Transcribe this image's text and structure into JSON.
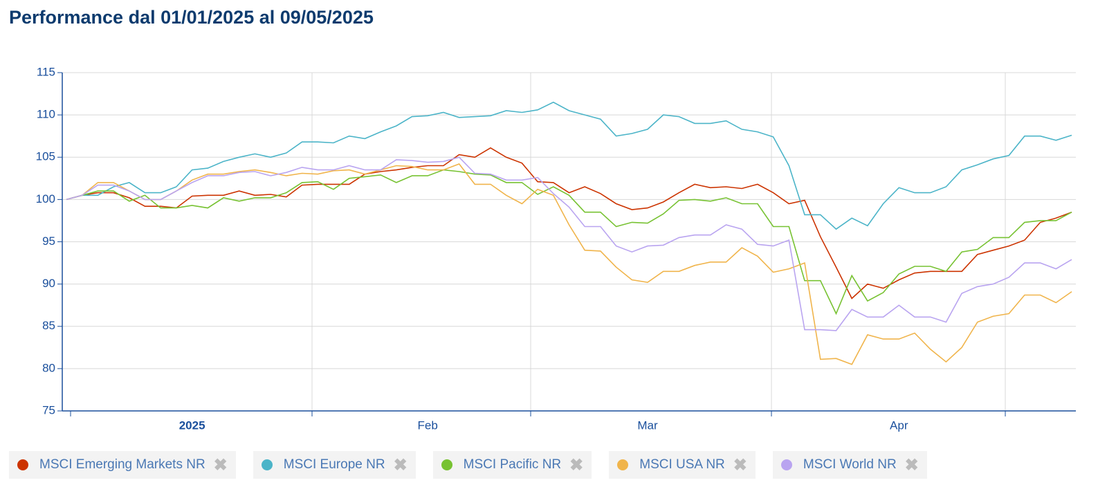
{
  "chart_data": {
    "type": "line",
    "title": "Performance dal 01/01/2025 al 09/05/2025",
    "categories": [
      null,
      null,
      null,
      null,
      null,
      null,
      null,
      null,
      "2025",
      null,
      null,
      null,
      null,
      null,
      null,
      null,
      null,
      null,
      null,
      null,
      null,
      null,
      null,
      "Feb",
      null,
      null,
      null,
      null,
      null,
      null,
      null,
      null,
      null,
      null,
      null,
      null,
      null,
      "Mar",
      null,
      null,
      null,
      null,
      null,
      null,
      null,
      null,
      null,
      null,
      null,
      null,
      null,
      null,
      null,
      "Apr",
      null,
      null,
      null,
      null,
      null,
      null,
      null,
      null,
      null,
      null,
      null
    ],
    "ylim": [
      75,
      115
    ],
    "yticks": [
      75,
      80,
      85,
      90,
      95,
      100,
      105,
      110,
      115
    ],
    "grid": true,
    "series": [
      {
        "name": "MSCI Emerging Markets NR",
        "color": "#cc3300",
        "values": [
          100,
          100.5,
          100.8,
          100.8,
          100.2,
          99.2,
          99.2,
          99,
          100.4,
          100.5,
          100.5,
          101,
          100.5,
          100.6,
          100.3,
          101.7,
          101.8,
          101.8,
          101.8,
          103,
          103.3,
          103.5,
          103.8,
          104,
          104,
          105.3,
          105,
          106.1,
          105,
          104.3,
          102.1,
          102,
          100.8,
          101.5,
          100.7,
          99.5,
          98.8,
          99,
          99.7,
          100.8,
          101.8,
          101.4,
          101.5,
          101.3,
          101.8,
          100.8,
          99.5,
          99.9,
          95.6,
          92,
          88.3,
          90,
          89.5,
          90.5,
          91.3,
          91.5,
          91.5,
          91.5,
          93.5,
          94,
          94.5,
          95.2,
          97.3,
          97.8,
          98.5
        ]
      },
      {
        "name": "MSCI Europe NR",
        "color": "#4bb4c8",
        "values": [
          100,
          100.5,
          100.5,
          101.5,
          102,
          100.8,
          100.8,
          101.5,
          103.5,
          103.7,
          104.5,
          105,
          105.4,
          105,
          105.5,
          106.8,
          106.8,
          106.7,
          107.5,
          107.2,
          108,
          108.7,
          109.8,
          109.9,
          110.3,
          109.7,
          109.8,
          109.9,
          110.5,
          110.3,
          110.6,
          111.5,
          110.5,
          110,
          109.5,
          107.5,
          107.8,
          108.3,
          110,
          109.8,
          109,
          109,
          109.3,
          108.3,
          108,
          107.4,
          104,
          98.2,
          98.2,
          96.5,
          97.8,
          96.9,
          99.5,
          101.4,
          100.8,
          100.8,
          101.5,
          103.5,
          104.1,
          104.8,
          105.2,
          107.5,
          107.5,
          107,
          107.6
        ]
      },
      {
        "name": "MSCI Pacific NR",
        "color": "#77c232",
        "values": [
          100,
          100.5,
          101,
          101,
          99.8,
          100.5,
          99,
          99,
          99.3,
          99,
          100.2,
          99.8,
          100.2,
          100.2,
          100.8,
          102,
          102.1,
          101.2,
          102.5,
          102.7,
          102.9,
          102,
          102.8,
          102.8,
          103.5,
          103.3,
          103,
          102.9,
          102,
          102,
          100.6,
          101.5,
          100.5,
          98.5,
          98.5,
          96.8,
          97.3,
          97.2,
          98.3,
          99.9,
          100,
          99.8,
          100.2,
          99.5,
          99.5,
          96.8,
          96.8,
          90.4,
          90.4,
          86.5,
          91,
          88,
          89,
          91.2,
          92.1,
          92.1,
          91.5,
          93.8,
          94.1,
          95.5,
          95.5,
          97.3,
          97.5,
          97.5,
          98.5
        ]
      },
      {
        "name": "MSCI USA NR",
        "color": "#f0b44b",
        "values": [
          100,
          100.5,
          102,
          102,
          101,
          100,
          100,
          101,
          102.3,
          103,
          103,
          103.3,
          103.5,
          103.2,
          102.8,
          103.1,
          103,
          103.4,
          103.5,
          103,
          103.5,
          104,
          103.9,
          103.5,
          103.5,
          104.2,
          101.8,
          101.8,
          100.5,
          99.5,
          101.2,
          100.5,
          97,
          94,
          93.9,
          92,
          90.5,
          90.2,
          91.5,
          91.5,
          92.2,
          92.6,
          92.6,
          94.3,
          93.3,
          91.4,
          91.8,
          92.5,
          81.1,
          81.2,
          80.5,
          84,
          83.5,
          83.5,
          84.2,
          82.3,
          80.8,
          82.5,
          85.5,
          86.2,
          86.5,
          88.7,
          88.7,
          87.8,
          89.1
        ]
      },
      {
        "name": "MSCI World NR",
        "color": "#b9a4f0",
        "values": [
          100,
          100.5,
          101.7,
          101.7,
          101,
          100,
          100,
          101,
          102,
          102.8,
          102.8,
          103.2,
          103.3,
          102.8,
          103.2,
          103.8,
          103.5,
          103.5,
          104,
          103.5,
          103.5,
          104.7,
          104.6,
          104.4,
          104.5,
          105,
          103.1,
          103,
          102.3,
          102.3,
          102.6,
          100.7,
          99.1,
          96.8,
          96.8,
          94.5,
          93.8,
          94.5,
          94.6,
          95.5,
          95.8,
          95.8,
          97,
          96.5,
          94.7,
          94.5,
          95.2,
          84.6,
          84.6,
          84.5,
          87,
          86.1,
          86.1,
          87.5,
          86.1,
          86.1,
          85.5,
          88.9,
          89.7,
          90,
          90.8,
          92.5,
          92.5,
          91.8,
          92.9
        ]
      }
    ]
  }
}
